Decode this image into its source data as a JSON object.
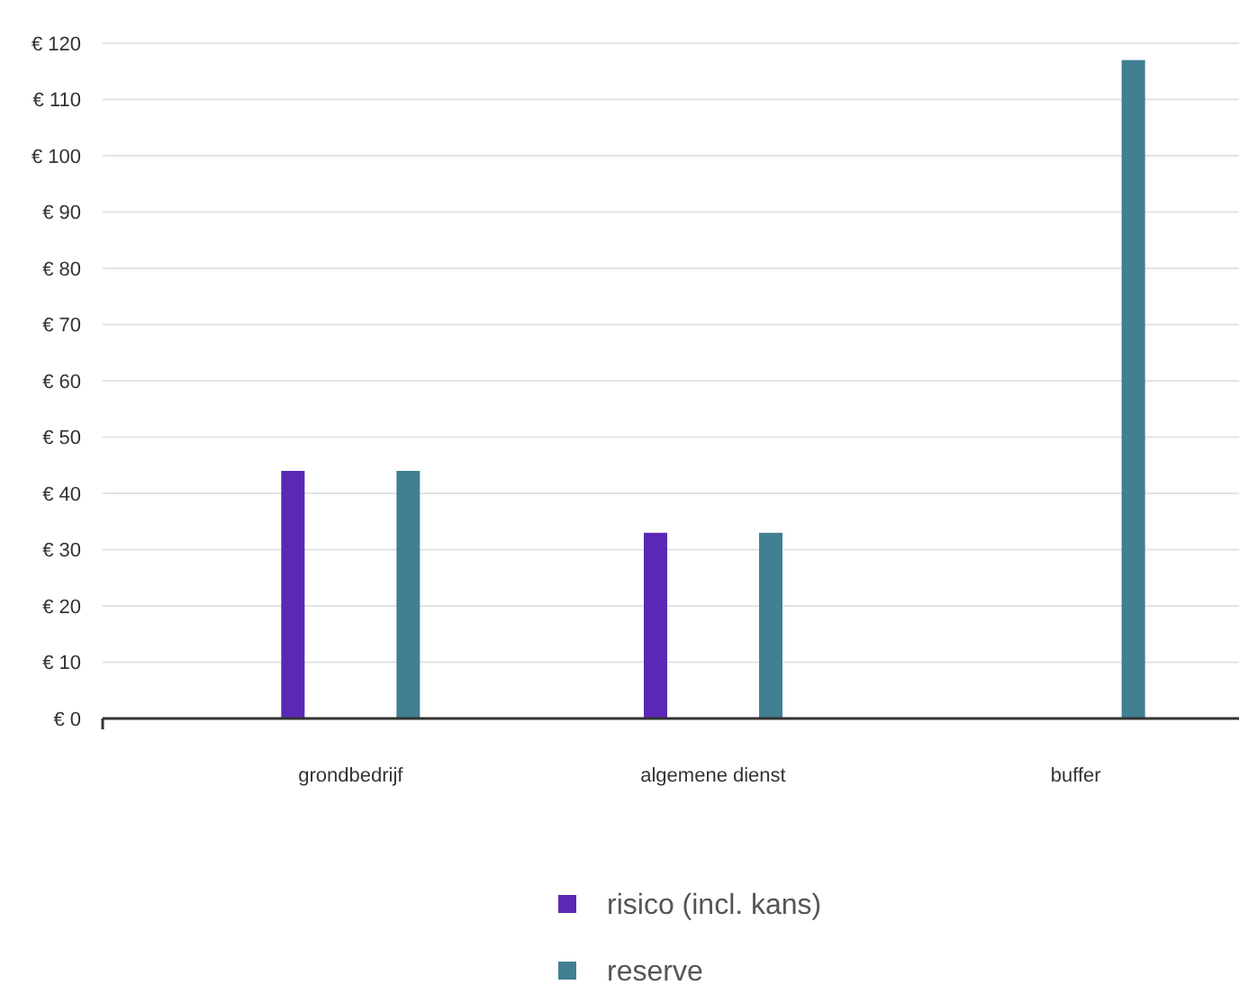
{
  "chart_data": {
    "type": "bar",
    "categories": [
      "grondbedrijf",
      "algemene dienst",
      "buffer"
    ],
    "series": [
      {
        "name": "risico (incl. kans)",
        "color": "#5b28b5",
        "values": [
          44,
          33,
          null
        ]
      },
      {
        "name": "reserve",
        "color": "#417f93",
        "values": [
          44,
          33,
          117
        ]
      }
    ],
    "ylim": [
      0,
      120
    ],
    "yticks": [
      {
        "value": 0,
        "label": "€ 0"
      },
      {
        "value": 10,
        "label": "€ 10"
      },
      {
        "value": 20,
        "label": "€ 20"
      },
      {
        "value": 30,
        "label": "€ 30"
      },
      {
        "value": 40,
        "label": "€ 40"
      },
      {
        "value": 50,
        "label": "€ 50"
      },
      {
        "value": 60,
        "label": "€ 60"
      },
      {
        "value": 70,
        "label": "€ 70"
      },
      {
        "value": 80,
        "label": "€ 80"
      },
      {
        "value": 90,
        "label": "€ 90"
      },
      {
        "value": 100,
        "label": "€ 100"
      },
      {
        "value": 110,
        "label": "€ 110"
      },
      {
        "value": 120,
        "label": "€ 120"
      }
    ],
    "grid": "y",
    "legend": "bottom"
  }
}
